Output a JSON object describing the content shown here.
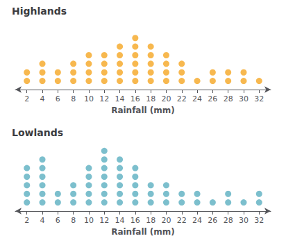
{
  "chart_data": [
    {
      "type": "dot",
      "title": "Highlands",
      "xlabel": "Rainfall (mm)",
      "x": [
        2,
        4,
        6,
        8,
        10,
        12,
        14,
        16,
        18,
        20,
        22,
        24,
        26,
        28,
        30,
        32
      ],
      "values": [
        2,
        3,
        2,
        3,
        4,
        4,
        5,
        6,
        5,
        4,
        3,
        1,
        2,
        2,
        2,
        1
      ],
      "color": "#F5A623",
      "xlim": [
        0.5,
        33.5
      ],
      "xticks": [
        2,
        4,
        6,
        8,
        10,
        12,
        14,
        16,
        18,
        20,
        22,
        24,
        26,
        28,
        30,
        32
      ],
      "ylim": [
        0,
        8
      ],
      "tick_labels": "x",
      "grid": false
    },
    {
      "type": "dot",
      "title": "Lowlands",
      "xlabel": "Rainfall (mm)",
      "x": [
        2,
        4,
        6,
        8,
        10,
        12,
        14,
        16,
        18,
        20,
        22,
        24,
        26,
        28,
        30,
        32
      ],
      "values": [
        5,
        6,
        2,
        3,
        5,
        7,
        6,
        5,
        3,
        3,
        2,
        2,
        1,
        2,
        1,
        2
      ],
      "color": "#5BAFC0",
      "xlim": [
        0.5,
        33.5
      ],
      "xticks": [
        2,
        4,
        6,
        8,
        10,
        12,
        14,
        16,
        18,
        20,
        22,
        24,
        26,
        28,
        30,
        32
      ],
      "ylim": [
        0,
        8
      ],
      "tick_labels": "x",
      "grid": false
    }
  ]
}
